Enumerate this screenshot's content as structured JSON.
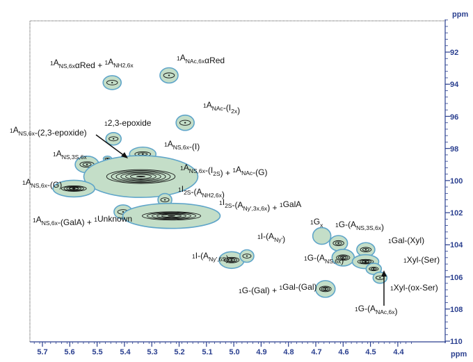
{
  "chart_data": {
    "type": "scatter",
    "xlabel": "ppm",
    "ylabel": "ppm",
    "xlim": [
      5.78,
      4.34
    ],
    "ylim": [
      90,
      110
    ],
    "x_ticks": [
      "5.7",
      "5.6",
      "5.5",
      "5.4",
      "5.3",
      "5.2",
      "5.1",
      "5.0",
      "4.9",
      "4.8",
      "4.7",
      "4.6",
      "4.5",
      "4.4"
    ],
    "y_ticks": [
      "92",
      "94",
      "96",
      "98",
      "100",
      "102",
      "104",
      "106",
      "108",
      "110"
    ],
    "colors": {
      "axis": "#2a3f8f",
      "ellipse_fill": "#c4dec8",
      "ellipse_stroke": "#5fa5c9",
      "contour": "#111111",
      "text": "#111111"
    },
    "peaks": [
      {
        "x": 5.445,
        "y": 93.9
      },
      {
        "x": 5.237,
        "y": 93.45
      },
      {
        "x": 5.178,
        "y": 96.4
      },
      {
        "x": 5.44,
        "y": 97.4
      },
      {
        "x": 5.333,
        "y": 98.35
      },
      {
        "x": 5.462,
        "y": 98.65
      },
      {
        "x": 5.537,
        "y": 99.0
      },
      {
        "x": 5.34,
        "y": 99.75
      },
      {
        "x": 5.585,
        "y": 100.5
      },
      {
        "x": 5.252,
        "y": 101.2
      },
      {
        "x": 5.405,
        "y": 101.95
      },
      {
        "x": 5.228,
        "y": 102.2
      },
      {
        "x": 4.678,
        "y": 103.45
      },
      {
        "x": 4.617,
        "y": 103.9
      },
      {
        "x": 4.517,
        "y": 104.3
      },
      {
        "x": 4.6,
        "y": 104.8
      },
      {
        "x": 4.518,
        "y": 105.05
      },
      {
        "x": 4.488,
        "y": 105.5
      },
      {
        "x": 4.465,
        "y": 106.05
      },
      {
        "x": 5.008,
        "y": 104.95
      },
      {
        "x": 4.952,
        "y": 104.7
      },
      {
        "x": 4.665,
        "y": 106.75
      }
    ]
  },
  "annotations": [
    {
      "id": "a1",
      "segs": [
        [
          "sup",
          "1"
        ],
        [
          "t",
          "A"
        ],
        [
          "sub",
          "NS,6x"
        ],
        [
          "t",
          "αRed + "
        ],
        [
          "sup",
          "1"
        ],
        [
          "t",
          "A"
        ],
        [
          "sub",
          "NH2,6x"
        ]
      ]
    },
    {
      "id": "a2",
      "segs": [
        [
          "sup",
          "1"
        ],
        [
          "t",
          "A"
        ],
        [
          "sub",
          "NAc,6x"
        ],
        [
          "t",
          "αRed"
        ]
      ]
    },
    {
      "id": "a3",
      "segs": [
        [
          "sup",
          "1"
        ],
        [
          "t",
          "A"
        ],
        [
          "sub",
          "NAc"
        ],
        [
          "t",
          "-(I"
        ],
        [
          "sub",
          "2x"
        ],
        [
          "t",
          ")"
        ]
      ]
    },
    {
      "id": "a4",
      "segs": [
        [
          "sup",
          "1"
        ],
        [
          "t",
          "2,3-epoxide"
        ]
      ]
    },
    {
      "id": "a5",
      "segs": [
        [
          "sup",
          "1"
        ],
        [
          "t",
          "A"
        ],
        [
          "sub",
          "NS,6x"
        ],
        [
          "t",
          "-(2,3-epoxide)"
        ]
      ]
    },
    {
      "id": "a6",
      "segs": [
        [
          "sup",
          "1"
        ],
        [
          "t",
          "A"
        ],
        [
          "sub",
          "NS,6x"
        ],
        [
          "t",
          "-(I)"
        ]
      ]
    },
    {
      "id": "a7",
      "segs": [
        [
          "sup",
          "1"
        ],
        [
          "t",
          "A"
        ],
        [
          "sub",
          "NS,3S,6x"
        ]
      ]
    },
    {
      "id": "a8",
      "segs": [
        [
          "sup",
          "1"
        ],
        [
          "t",
          "A"
        ],
        [
          "sub",
          "NS,6x"
        ],
        [
          "t",
          "-(I"
        ],
        [
          "sub",
          "2S"
        ],
        [
          "t",
          ") + "
        ],
        [
          "sup",
          "1"
        ],
        [
          "t",
          "A"
        ],
        [
          "sub",
          "NAc"
        ],
        [
          "t",
          "-(G)"
        ]
      ]
    },
    {
      "id": "a9",
      "segs": [
        [
          "sup",
          "1"
        ],
        [
          "t",
          "A"
        ],
        [
          "sub",
          "NS,6x"
        ],
        [
          "t",
          "-(G)"
        ]
      ]
    },
    {
      "id": "a10",
      "segs": [
        [
          "sup",
          "1"
        ],
        [
          "t",
          "I"
        ],
        [
          "sub",
          "2S"
        ],
        [
          "t",
          "-(A"
        ],
        [
          "sub",
          "NH2,6x"
        ],
        [
          "t",
          ")"
        ]
      ]
    },
    {
      "id": "a11",
      "segs": [
        [
          "sup",
          "1"
        ],
        [
          "t",
          "I"
        ],
        [
          "sub",
          "2S"
        ],
        [
          "t",
          "-(A"
        ],
        [
          "sub",
          "Ny',3x,6x"
        ],
        [
          "t",
          ") + "
        ],
        [
          "sup",
          "1"
        ],
        [
          "t",
          "GalA"
        ]
      ]
    },
    {
      "id": "a12",
      "segs": [
        [
          "sup",
          "1"
        ],
        [
          "t",
          "A"
        ],
        [
          "sub",
          "NS,6x"
        ],
        [
          "t",
          "-(GalA) + "
        ],
        [
          "sup",
          "1"
        ],
        [
          "t",
          "Unknown"
        ]
      ]
    },
    {
      "id": "a13",
      "segs": [
        [
          "sup",
          "1"
        ],
        [
          "t",
          "G"
        ],
        [
          "sub",
          "x"
        ]
      ]
    },
    {
      "id": "a14",
      "segs": [
        [
          "sup",
          "1"
        ],
        [
          "t",
          "G-(A"
        ],
        [
          "sub",
          "NS,3S,6x"
        ],
        [
          "t",
          ")"
        ]
      ]
    },
    {
      "id": "a15",
      "segs": [
        [
          "sup",
          "1"
        ],
        [
          "t",
          "Gal-(Xyl)"
        ]
      ]
    },
    {
      "id": "a16",
      "segs": [
        [
          "sup",
          "1"
        ],
        [
          "t",
          "I-(A"
        ],
        [
          "sub",
          "Ny'"
        ],
        [
          "t",
          ")"
        ]
      ]
    },
    {
      "id": "a17",
      "segs": [
        [
          "sup",
          "1"
        ],
        [
          "t",
          "I-(A"
        ],
        [
          "sub",
          "Ny',6S"
        ],
        [
          "t",
          ")"
        ]
      ]
    },
    {
      "id": "a18",
      "segs": [
        [
          "sup",
          "1"
        ],
        [
          "t",
          "G-(A"
        ],
        [
          "sub",
          "NS,6x"
        ],
        [
          "t",
          ")"
        ]
      ]
    },
    {
      "id": "a19",
      "segs": [
        [
          "sup",
          "1"
        ],
        [
          "t",
          "Xyl-(Ser)"
        ]
      ]
    },
    {
      "id": "a20",
      "segs": [
        [
          "sup",
          "1"
        ],
        [
          "t",
          "Xyl-(ox-Ser)"
        ]
      ]
    },
    {
      "id": "a21",
      "segs": [
        [
          "sup",
          "1"
        ],
        [
          "t",
          "G-(Gal) + "
        ],
        [
          "sup",
          "1"
        ],
        [
          "t",
          "Gal-(Gal)"
        ]
      ]
    },
    {
      "id": "a22",
      "segs": [
        [
          "sup",
          "1"
        ],
        [
          "t",
          "G-(A"
        ],
        [
          "sub",
          "NAc,6x"
        ],
        [
          "t",
          ")"
        ]
      ]
    }
  ]
}
